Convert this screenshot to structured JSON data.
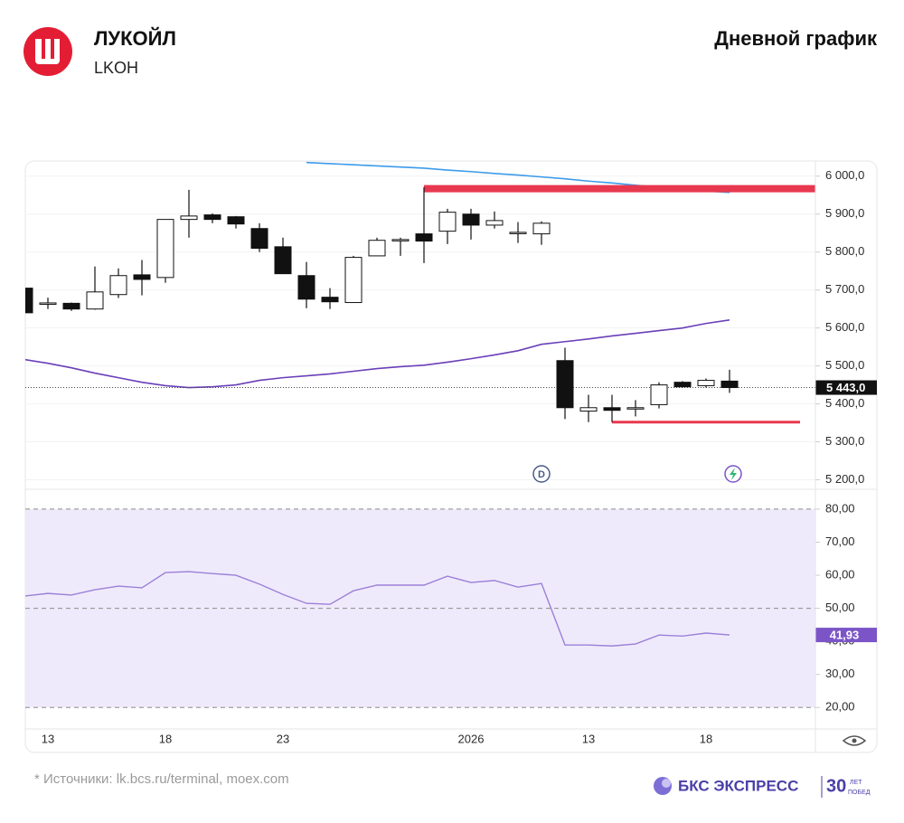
{
  "header": {
    "name": "ЛУКОЙЛ",
    "ticker": "LKOH",
    "period": "Дневной график"
  },
  "chart_data": [
    {
      "type": "candlestick",
      "categories": [
        null,
        "13",
        null,
        null,
        null,
        null,
        "18",
        null,
        null,
        null,
        null,
        "23",
        null,
        null,
        null,
        null,
        null,
        null,
        null,
        "2026",
        null,
        null,
        null,
        null,
        "13",
        null,
        null,
        null,
        null,
        "18",
        null
      ],
      "open": [
        5705,
        5665,
        5665,
        5650,
        5688,
        5740,
        5733,
        5886,
        5898,
        5893,
        5862,
        5814,
        5738,
        5681,
        5667,
        5790,
        5831,
        5848,
        5855,
        5900,
        5871,
        5852,
        5848,
        5514,
        5381,
        5390,
        5390,
        5398,
        5457,
        5448,
        5460
      ],
      "high": [
        5736,
        5680,
        5667,
        5762,
        5757,
        5779,
        5886,
        5964,
        5902,
        5895,
        5876,
        5838,
        5774,
        5705,
        5790,
        5838,
        5838,
        5971,
        5914,
        5914,
        5907,
        5879,
        5881,
        5548,
        5424,
        5424,
        5410,
        5457,
        5460,
        5467,
        5490
      ],
      "low": [
        5640,
        5650,
        5645,
        5648,
        5679,
        5686,
        5719,
        5838,
        5876,
        5862,
        5800,
        5743,
        5652,
        5650,
        5667,
        5790,
        5790,
        5771,
        5821,
        5833,
        5862,
        5824,
        5819,
        5360,
        5352,
        5352,
        5367,
        5388,
        5443,
        5443,
        5429
      ],
      "close": [
        5640,
        5666,
        5650,
        5695,
        5738,
        5728,
        5886,
        5895,
        5886,
        5874,
        5810,
        5743,
        5676,
        5669,
        5786,
        5831,
        5833,
        5829,
        5905,
        5871,
        5883,
        5852,
        5876,
        5390,
        5390,
        5383,
        5390,
        5450,
        5445,
        5462,
        5443
      ],
      "up_color": "#ffffff",
      "down_color": "#111111",
      "series": [
        {
          "color": "#3d9be9",
          "values": [
            null,
            null,
            null,
            null,
            null,
            null,
            null,
            null,
            null,
            null,
            null,
            null,
            6036,
            6033,
            6030,
            6027,
            6024,
            6021,
            6016,
            6012,
            6007,
            6003,
            5998,
            5993,
            5987,
            5982,
            5976,
            5971,
            5966,
            5961,
            5957
          ]
        },
        {
          "color": "#6a3fb8",
          "values": [
            5517,
            5507,
            5495,
            5481,
            5469,
            5457,
            5448,
            5443,
            5445,
            5450,
            5462,
            5469,
            5474,
            5479,
            5486,
            5493,
            5498,
            5502,
            5510,
            5519,
            5529,
            5540,
            5557,
            5564,
            5571,
            5579,
            5586,
            5593,
            5600,
            5612,
            5621
          ]
        }
      ],
      "levels": [
        {
          "value": 5967,
          "start": 17,
          "color": "#e8384f"
        },
        {
          "value": 5352,
          "start": 25,
          "color": "#e8384f"
        }
      ],
      "last_price": {
        "value": 5443,
        "label": "5 443,0"
      },
      "events": [
        {
          "index": 22,
          "label": "D"
        }
      ],
      "ylim": [
        5175,
        6040
      ],
      "yticks": [
        {
          "value": 6000,
          "label": "6 000,0"
        },
        {
          "value": 5900,
          "label": "5 900,0"
        },
        {
          "value": 5800,
          "label": "5 800,0"
        },
        {
          "value": 5700,
          "label": "5 700,0"
        },
        {
          "value": 5600,
          "label": "5 600,0"
        },
        {
          "value": 5500,
          "label": "5 500,0"
        },
        {
          "value": 5400,
          "label": "5 400,0"
        },
        {
          "value": 5300,
          "label": "5 300,0"
        },
        {
          "value": 5200,
          "label": "5 200,0"
        }
      ],
      "grid": true
    },
    {
      "type": "line",
      "color": "#9b80d8",
      "values": [
        53.7,
        54.5,
        54.0,
        55.6,
        56.7,
        56.2,
        60.8,
        61.1,
        60.5,
        60.0,
        57.3,
        54.2,
        51.5,
        51.2,
        55.3,
        57.0,
        57.0,
        57.0,
        59.7,
        57.8,
        58.4,
        56.4,
        57.5,
        38.9,
        38.9,
        38.6,
        39.2,
        41.9,
        41.6,
        42.5,
        41.93
      ],
      "value_labels": [
        null,
        null,
        null,
        null,
        null,
        null,
        null,
        null,
        null,
        null,
        null,
        null,
        null,
        null,
        null,
        null,
        null,
        null,
        null,
        null,
        null,
        null,
        null,
        null,
        null,
        null,
        null,
        null,
        null,
        null,
        "41,93"
      ],
      "band": [
        20,
        80
      ],
      "dashed_levels": [
        80,
        50,
        20
      ],
      "ylim": [
        13.5,
        86
      ],
      "yticks": [
        {
          "value": 80,
          "label": "80,00"
        },
        {
          "value": 70,
          "label": "70,00"
        },
        {
          "value": 60,
          "label": "60,00"
        },
        {
          "value": 50,
          "label": "50,00"
        },
        {
          "value": 40,
          "label": "40,00"
        },
        {
          "value": 30,
          "label": "30,00"
        },
        {
          "value": 20,
          "label": "20,00"
        }
      ],
      "grid": true
    }
  ],
  "footer": {
    "source": "* Источники: lk.bcs.ru/terminal, moex.com",
    "brand": "БКС ЭКСПРЕСС",
    "badge_number": "30",
    "badge_top": "ЛЕТ",
    "badge_bottom": "ПОБЕД"
  }
}
